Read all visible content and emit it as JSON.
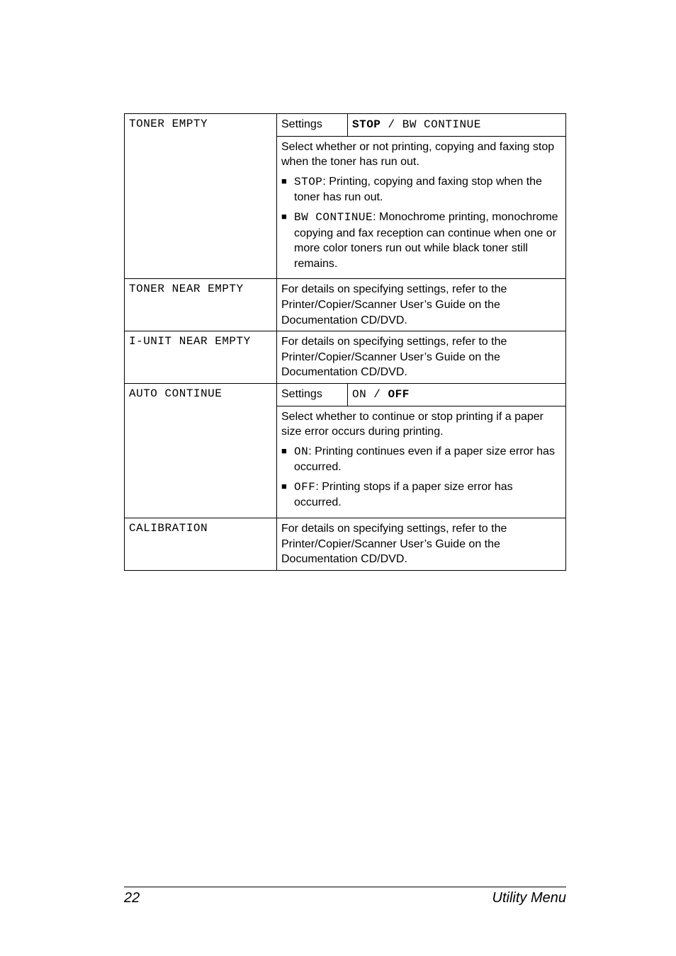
{
  "rows": {
    "toner_empty": {
      "label": "TONER EMPTY",
      "settings_label": "Settings",
      "settings_value_pre": "STOP",
      "settings_value_sep": " / ",
      "settings_value_post": "BW CONTINUE",
      "desc_intro": "Select whether or not printing, copying and faxing stop when the toner has run out.",
      "bullet1_code": "STOP",
      "bullet1_text": ": Printing, copying and faxing stop when the toner has run out.",
      "bullet2_code": "BW CONTINUE",
      "bullet2_text": ": Monochrome printing, monochrome copying and fax reception can continue when one or more color toners run out while black toner still remains."
    },
    "toner_near_empty": {
      "label": "TONER NEAR EMPTY",
      "desc": "For details on specifying settings, refer to the Printer/Copier/Scanner User’s Guide on the Documentation CD/DVD."
    },
    "iunit_near_empty": {
      "label": "I-UNIT NEAR EMPTY",
      "desc": "For details on specifying settings, refer to the Printer/Copier/Scanner User’s Guide on the Documentation CD/DVD."
    },
    "auto_continue": {
      "label": "AUTO CONTINUE",
      "settings_label": "Settings",
      "settings_value_pre": "ON",
      "settings_value_sep": " / ",
      "settings_value_post": "OFF",
      "desc_intro": "Select whether to continue or stop printing if a paper size error occurs during printing.",
      "bullet1_code": "ON",
      "bullet1_text": ": Printing continues even if a paper size error has occurred.",
      "bullet2_code": "OFF",
      "bullet2_text": ": Printing stops if a paper size error has occurred."
    },
    "calibration": {
      "label": "CALIBRATION",
      "desc": "For details on specifying settings, refer to the Printer/Copier/Scanner User’s Guide on the Documentation CD/DVD."
    }
  },
  "footer": {
    "page_number": "22",
    "section": "Utility Menu"
  }
}
